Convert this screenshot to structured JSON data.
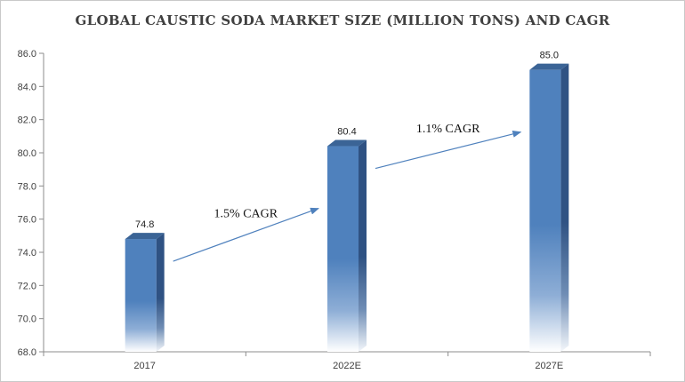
{
  "chart_data": {
    "type": "bar",
    "title": "GLOBAL CAUSTIC SODA MARKET SIZE  (MILLION TONS) AND CAGR",
    "categories": [
      "2017",
      "2022E",
      "2027E"
    ],
    "values": [
      74.8,
      80.4,
      85.0
    ],
    "value_labels": [
      "74.8",
      "80.4",
      "85.0"
    ],
    "ylim": [
      68.0,
      86.0
    ],
    "yticks": [
      68.0,
      70.0,
      72.0,
      74.0,
      76.0,
      78.0,
      80.0,
      82.0,
      84.0,
      86.0
    ],
    "ytick_labels": [
      "68.0",
      "70.0",
      "72.0",
      "74.0",
      "76.0",
      "78.0",
      "80.0",
      "82.0",
      "84.0",
      "86.0"
    ],
    "grid": false,
    "annotations": [
      {
        "text": "1.5% CAGR",
        "from": "2017",
        "to": "2022E"
      },
      {
        "text": "1.1% CAGR",
        "from": "2022E",
        "to": "2027E"
      }
    ],
    "colors": {
      "bar_front": "#4f81bd",
      "bar_side": "#2f5283",
      "bar_top": "#3b6496",
      "arrow": "#4f81bd",
      "axis": "#8c8c8c"
    }
  }
}
